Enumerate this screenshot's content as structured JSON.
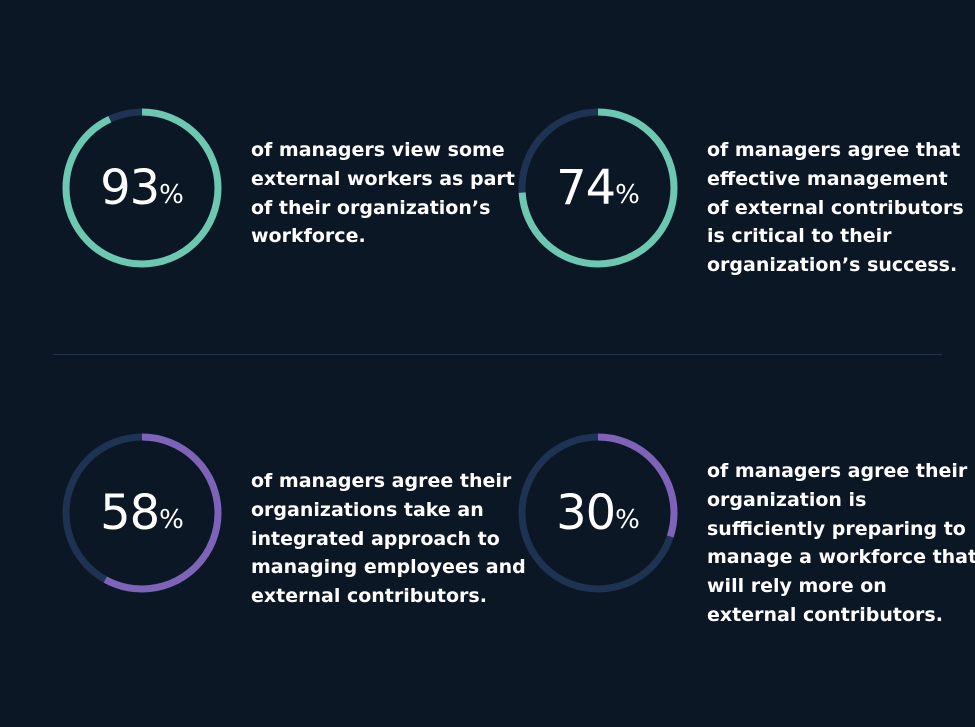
{
  "colors": {
    "background": "#0b1724",
    "track": "#1e3353",
    "teal": "#6cc8b0",
    "purple": "#7e63b8",
    "divider": "#24344a"
  },
  "chart_data": [
    {
      "type": "donut",
      "value": 93,
      "value_label": "93",
      "unit": "%",
      "color": "teal",
      "description_lines": [
        "of managers view some",
        "external workers as part",
        "of their organization’s",
        "workforce."
      ]
    },
    {
      "type": "donut",
      "value": 74,
      "value_label": "74",
      "unit": "%",
      "color": "teal",
      "description_lines": [
        "of managers agree that",
        "effective management",
        "of external contributors",
        "is critical to their",
        "organization’s success."
      ]
    },
    {
      "type": "donut",
      "value": 58,
      "value_label": "58",
      "unit": "%",
      "color": "purple",
      "description_lines": [
        "of managers agree their",
        "organizations take an",
        "integrated approach to",
        "managing employees and",
        "external contributors."
      ]
    },
    {
      "type": "donut",
      "value": 30,
      "value_label": "30",
      "unit": "%",
      "color": "purple",
      "description_lines": [
        "of managers agree their",
        "organization is",
        "sufficiently preparing to",
        "manage a workforce that",
        "will rely more on",
        "external contributors."
      ]
    }
  ]
}
